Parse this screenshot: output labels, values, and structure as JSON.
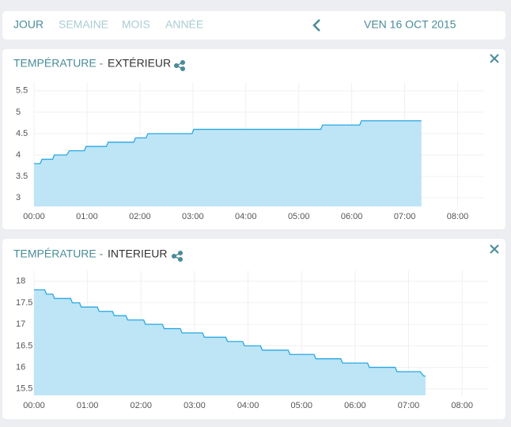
{
  "nav": {
    "tabs": [
      "JOUR",
      "SEMAINE",
      "MOIS",
      "ANNÉE"
    ],
    "date": "VEN 16 OCT 2015"
  },
  "chart_data": [
    {
      "type": "area",
      "title": "TEMPÉRATURE -",
      "subtitle": "EXTÉRIEUR",
      "x": [
        0,
        7,
        9,
        21,
        23,
        37,
        40,
        57,
        59,
        82,
        84,
        113,
        115,
        127,
        129,
        179,
        181,
        325,
        327,
        369,
        371,
        439
      ],
      "series": [
        {
          "color": "#29a8e0",
          "fill": "#bde5f6",
          "values": [
            3.8,
            3.8,
            3.9,
            3.9,
            4.0,
            4.0,
            4.1,
            4.1,
            4.2,
            4.2,
            4.3,
            4.3,
            4.4,
            4.4,
            4.5,
            4.5,
            4.6,
            4.6,
            4.7,
            4.7,
            4.8,
            4.8
          ]
        }
      ],
      "xlim": [
        0,
        510
      ],
      "xticks": [
        {
          "value": 0,
          "label": "00:00"
        },
        {
          "value": 60,
          "label": "01:00"
        },
        {
          "value": 120,
          "label": "02:00"
        },
        {
          "value": 180,
          "label": "03:00"
        },
        {
          "value": 240,
          "label": "04:00"
        },
        {
          "value": 300,
          "label": "05:00"
        },
        {
          "value": 360,
          "label": "06:00"
        },
        {
          "value": 420,
          "label": "07:00"
        },
        {
          "value": 480,
          "label": "08:00"
        }
      ],
      "ylim": [
        2.8,
        5.7
      ],
      "yticks": [
        3,
        3.5,
        4,
        4.5,
        5,
        5.5
      ],
      "grid": true
    },
    {
      "type": "area",
      "title": "TEMPÉRATURE -",
      "subtitle": "INTERIEUR",
      "x": [
        0,
        12,
        14,
        21,
        23,
        41,
        43,
        51,
        53,
        71,
        73,
        88,
        90,
        103,
        105,
        123,
        125,
        144,
        146,
        164,
        166,
        189,
        191,
        215,
        217,
        234,
        236,
        254,
        256,
        285,
        287,
        314,
        316,
        344,
        346,
        374,
        376,
        405,
        407,
        433,
        437,
        439
      ],
      "series": [
        {
          "color": "#29a8e0",
          "fill": "#bde5f6",
          "values": [
            17.8,
            17.8,
            17.7,
            17.7,
            17.6,
            17.6,
            17.5,
            17.5,
            17.4,
            17.4,
            17.3,
            17.3,
            17.2,
            17.2,
            17.1,
            17.1,
            17.0,
            17.0,
            16.9,
            16.9,
            16.8,
            16.8,
            16.7,
            16.7,
            16.6,
            16.6,
            16.5,
            16.5,
            16.4,
            16.4,
            16.3,
            16.3,
            16.2,
            16.2,
            16.1,
            16.1,
            16.0,
            16.0,
            15.9,
            15.9,
            15.8,
            15.8
          ]
        }
      ],
      "xlim": [
        0,
        510
      ],
      "xticks": [
        {
          "value": 0,
          "label": "00:00"
        },
        {
          "value": 60,
          "label": "01:00"
        },
        {
          "value": 120,
          "label": "02:00"
        },
        {
          "value": 180,
          "label": "03:00"
        },
        {
          "value": 240,
          "label": "04:00"
        },
        {
          "value": 300,
          "label": "05:00"
        },
        {
          "value": 360,
          "label": "06:00"
        },
        {
          "value": 420,
          "label": "07:00"
        },
        {
          "value": 480,
          "label": "08:00"
        }
      ],
      "ylim": [
        15.35,
        18.25
      ],
      "yticks": [
        15.5,
        16,
        16.5,
        17,
        17.5,
        18
      ],
      "grid": true
    }
  ]
}
